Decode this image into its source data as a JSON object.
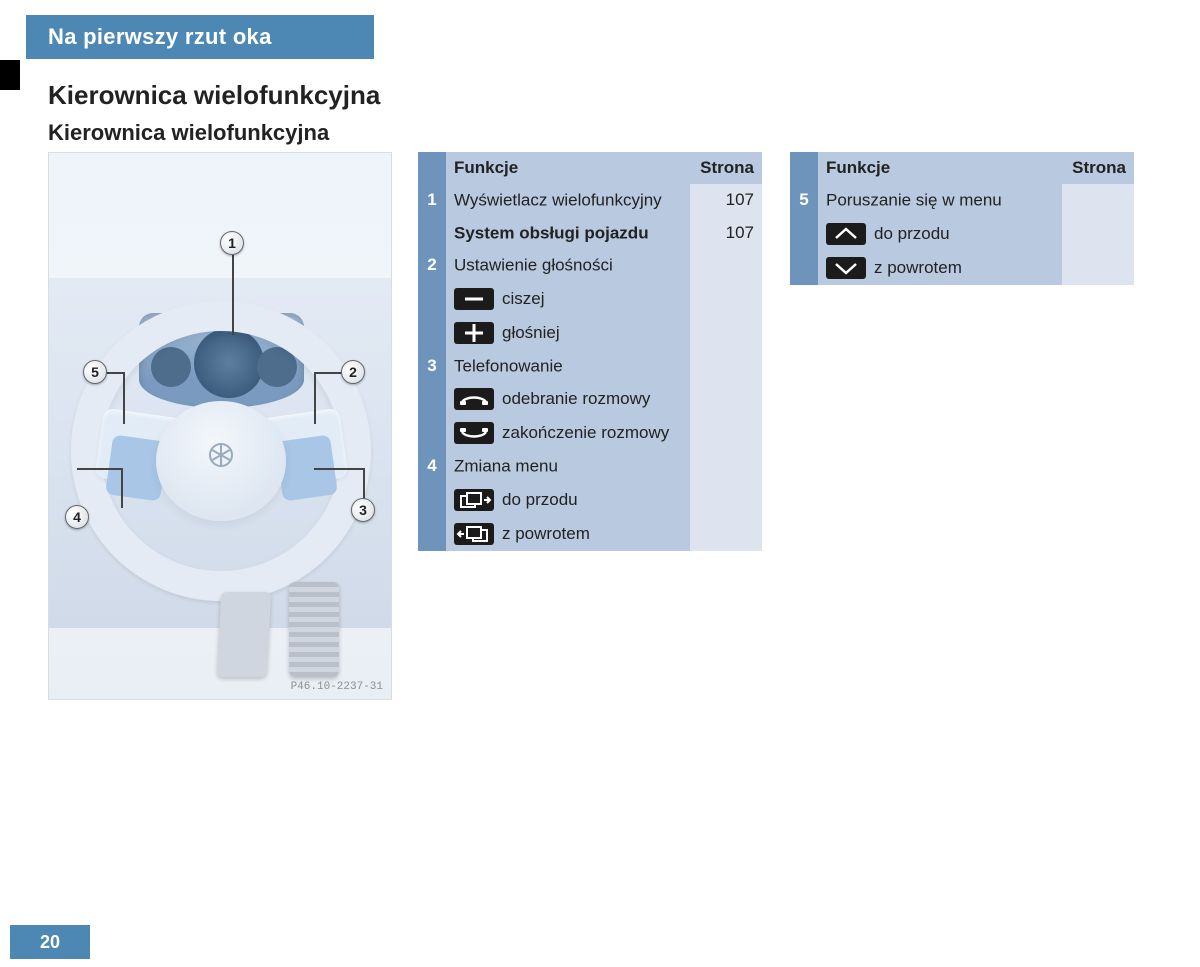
{
  "colors": {
    "brand": "#4d88b4",
    "table_header": "#b9c9df",
    "table_numcol": "#6e94bc",
    "table_pagecol": "#dde4ef",
    "icon_bg": "#1b1b1b"
  },
  "chapter_title": "Na pierwszy rzut oka",
  "section_h1": "Kierownica wielofunkcyjna",
  "section_h2": "Kierownica wielofunkcyjna",
  "illustration": {
    "figure_ref": "P46.10-2237-31",
    "callouts": [
      "1",
      "2",
      "3",
      "4",
      "5"
    ]
  },
  "table_headers": {
    "func": "Funkcje",
    "page": "Strona"
  },
  "functions_col1": {
    "rows": [
      {
        "num": "1",
        "lines": [
          {
            "text": "Wyświetlacz wielofunkcyjny",
            "page": "107"
          },
          {
            "text": "System obsługi pojazdu",
            "bold": true,
            "page": "107"
          }
        ]
      },
      {
        "num": "2",
        "lines": [
          {
            "text": "Ustawienie głośności"
          },
          {
            "icon": "minus",
            "text": "ciszej"
          },
          {
            "icon": "plus",
            "text": "głośniej"
          }
        ]
      },
      {
        "num": "3",
        "lines": [
          {
            "text": "Telefonowanie"
          },
          {
            "icon": "phone_pickup",
            "text": "odebranie rozmowy"
          },
          {
            "icon": "phone_hangup",
            "text": "zakończenie rozmowy"
          }
        ]
      },
      {
        "num": "4",
        "lines": [
          {
            "text": "Zmiana menu"
          },
          {
            "icon": "menu_fwd",
            "text": "do przodu"
          },
          {
            "icon": "menu_back",
            "text": "z powrotem"
          }
        ]
      }
    ]
  },
  "functions_col2": {
    "rows": [
      {
        "num": "5",
        "lines": [
          {
            "text": "Poruszanie się w menu"
          },
          {
            "icon": "chevron_up",
            "text": "do przodu"
          },
          {
            "icon": "chevron_down",
            "text": "z powrotem"
          }
        ]
      }
    ]
  },
  "page_number": "20"
}
